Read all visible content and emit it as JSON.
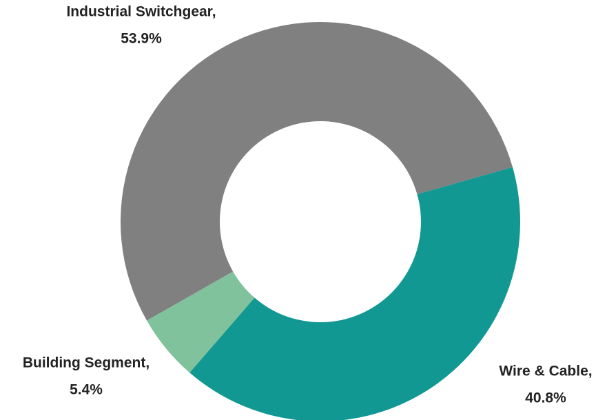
{
  "chart_data": {
    "type": "donut",
    "categories": [
      "Industrial Switchgear,",
      "Wire & Cable,",
      "Building Segment,"
    ],
    "values": [
      53.9,
      40.8,
      5.4
    ],
    "value_labels": [
      "53.9%",
      "40.8%",
      "5.4%"
    ],
    "colors": [
      "#808080",
      "#129893",
      "#7fc29b"
    ]
  }
}
